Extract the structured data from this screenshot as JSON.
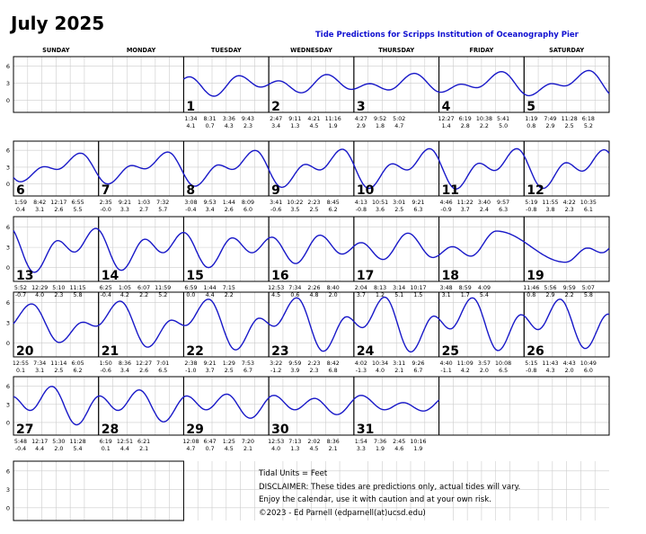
{
  "title": "July 2025",
  "subtitle": "Tide Predictions for Scripps Institution of Oceanography Pier",
  "weekdays": [
    "SUNDAY",
    "MONDAY",
    "TUESDAY",
    "WEDNESDAY",
    "THURSDAY",
    "FRIDAY",
    "SATURDAY"
  ],
  "notes": [
    "Tidal Units = Feet",
    "DISCLAIMER: These tides are predictions only, actual tides will vary.",
    "Enjoy the calendar, use it with caution and at your own risk.",
    "©2023 - Ed Parnell (edparnell(at)ucsd.edu)"
  ],
  "chart_data": {
    "type": "line",
    "y_units": "Feet",
    "y_ticks": [
      0,
      3,
      6
    ],
    "ylim": [
      -1.5,
      7
    ],
    "line_color": "#1818c8",
    "grid": true,
    "first_weekday_index": 2,
    "days": [
      {
        "day": 1,
        "tides": [
          [
            "1:34",
            "4.1"
          ],
          [
            "8:31",
            "0.7"
          ],
          [
            "3:36",
            "4.3"
          ],
          [
            "9:43",
            "2.3"
          ]
        ]
      },
      {
        "day": 2,
        "tides": [
          [
            "2:47",
            "3.4"
          ],
          [
            "9:11",
            "1.3"
          ],
          [
            "4:21",
            "4.5"
          ],
          [
            "11:16",
            "1.9"
          ]
        ]
      },
      {
        "day": 3,
        "tides": [
          [
            "4:27",
            "2.9"
          ],
          [
            "9:52",
            "1.8"
          ],
          [
            "5:02",
            "4.7"
          ]
        ]
      },
      {
        "day": 4,
        "tides": [
          [
            "12:27",
            "1.4"
          ],
          [
            "6:19",
            "2.8"
          ],
          [
            "10:38",
            "2.2"
          ],
          [
            "5:41",
            "5.0"
          ]
        ]
      },
      {
        "day": 5,
        "tides": [
          [
            "1:19",
            "0.8"
          ],
          [
            "7:49",
            "2.9"
          ],
          [
            "11:28",
            "2.5"
          ],
          [
            "6:18",
            "5.2"
          ]
        ]
      },
      {
        "day": 6,
        "tides": [
          [
            "1:59",
            "0.4"
          ],
          [
            "8:42",
            "3.1"
          ],
          [
            "12:17",
            "2.6"
          ],
          [
            "6:55",
            "5.5"
          ]
        ]
      },
      {
        "day": 7,
        "tides": [
          [
            "2:35",
            "-0.0"
          ],
          [
            "9:21",
            "3.3"
          ],
          [
            "1:03",
            "2.7"
          ],
          [
            "7:32",
            "5.7"
          ]
        ]
      },
      {
        "day": 8,
        "tides": [
          [
            "3:08",
            "-0.4"
          ],
          [
            "9:53",
            "3.4"
          ],
          [
            "1:44",
            "2.6"
          ],
          [
            "8:09",
            "6.0"
          ]
        ]
      },
      {
        "day": 9,
        "tides": [
          [
            "3:41",
            "-0.6"
          ],
          [
            "10:22",
            "3.5"
          ],
          [
            "2:23",
            "2.5"
          ],
          [
            "8:45",
            "6.2"
          ]
        ]
      },
      {
        "day": 10,
        "tides": [
          [
            "4:13",
            "-0.8"
          ],
          [
            "10:51",
            "3.6"
          ],
          [
            "3:01",
            "2.5"
          ],
          [
            "9:21",
            "6.3"
          ]
        ]
      },
      {
        "day": 11,
        "tides": [
          [
            "4:46",
            "-0.9"
          ],
          [
            "11:22",
            "3.7"
          ],
          [
            "3:40",
            "2.4"
          ],
          [
            "9:57",
            "6.3"
          ]
        ]
      },
      {
        "day": 12,
        "tides": [
          [
            "5:19",
            "-0.8"
          ],
          [
            "11:55",
            "3.8"
          ],
          [
            "4:22",
            "2.3"
          ],
          [
            "10:35",
            "6.1"
          ]
        ]
      },
      {
        "day": 13,
        "tides": [
          [
            "5:52",
            "-0.7"
          ],
          [
            "12:29",
            "4.0"
          ],
          [
            "5:10",
            "2.3"
          ],
          [
            "11:15",
            "5.8"
          ]
        ]
      },
      {
        "day": 14,
        "tides": [
          [
            "6:25",
            "-0.4"
          ],
          [
            "1:05",
            "4.2"
          ],
          [
            "6:07",
            "2.2"
          ],
          [
            "11:59",
            "5.2"
          ]
        ]
      },
      {
        "day": 15,
        "tides": [
          [
            "6:59",
            "0.0"
          ],
          [
            "1:44",
            "4.4"
          ],
          [
            "7:15",
            "2.2"
          ]
        ]
      },
      {
        "day": 16,
        "tides": [
          [
            "12:53",
            "4.5"
          ],
          [
            "7:34",
            "0.6"
          ],
          [
            "2:26",
            "4.8"
          ],
          [
            "8:40",
            "2.0"
          ]
        ]
      },
      {
        "day": 17,
        "tides": [
          [
            "2:04",
            "3.7"
          ],
          [
            "8:13",
            "1.2"
          ],
          [
            "3:14",
            "5.1"
          ],
          [
            "10:17",
            "1.5"
          ]
        ]
      },
      {
        "day": 18,
        "tides": [
          [
            "3:48",
            "3.1"
          ],
          [
            "8:59",
            "1.7"
          ],
          [
            "4:09",
            "5.4"
          ]
        ]
      },
      {
        "day": 19,
        "tides": [
          [
            "11:46",
            "0.8"
          ],
          [
            "5:56",
            "2.9"
          ],
          [
            "9:59",
            "2.2"
          ],
          [
            "5:07",
            "5.8"
          ]
        ]
      },
      {
        "day": 20,
        "tides": [
          [
            "12:55",
            "0.1"
          ],
          [
            "7:34",
            "3.1"
          ],
          [
            "11:14",
            "2.5"
          ],
          [
            "6:05",
            "6.2"
          ]
        ]
      },
      {
        "day": 21,
        "tides": [
          [
            "1:50",
            "-0.6"
          ],
          [
            "8:36",
            "3.4"
          ],
          [
            "12:27",
            "2.6"
          ],
          [
            "7:01",
            "6.5"
          ]
        ]
      },
      {
        "day": 22,
        "tides": [
          [
            "2:38",
            "-1.0"
          ],
          [
            "9:21",
            "3.7"
          ],
          [
            "1:29",
            "2.5"
          ],
          [
            "7:53",
            "6.7"
          ]
        ]
      },
      {
        "day": 23,
        "tides": [
          [
            "3:22",
            "-1.2"
          ],
          [
            "9:59",
            "3.9"
          ],
          [
            "2:23",
            "2.3"
          ],
          [
            "8:42",
            "6.8"
          ]
        ]
      },
      {
        "day": 24,
        "tides": [
          [
            "4:02",
            "-1.3"
          ],
          [
            "10:34",
            "4.0"
          ],
          [
            "3:11",
            "2.1"
          ],
          [
            "9:26",
            "6.7"
          ]
        ]
      },
      {
        "day": 25,
        "tides": [
          [
            "4:40",
            "-1.1"
          ],
          [
            "11:09",
            "4.2"
          ],
          [
            "3:57",
            "2.0"
          ],
          [
            "10:08",
            "6.5"
          ]
        ]
      },
      {
        "day": 26,
        "tides": [
          [
            "5:15",
            "-0.8"
          ],
          [
            "11:43",
            "4.3"
          ],
          [
            "4:43",
            "2.0"
          ],
          [
            "10:49",
            "6.0"
          ]
        ]
      },
      {
        "day": 27,
        "tides": [
          [
            "5:48",
            "-0.4"
          ],
          [
            "12:17",
            "4.4"
          ],
          [
            "5:30",
            "2.0"
          ],
          [
            "11:28",
            "5.4"
          ]
        ]
      },
      {
        "day": 28,
        "tides": [
          [
            "6:19",
            "0.1"
          ],
          [
            "12:51",
            "4.4"
          ],
          [
            "6:21",
            "2.1"
          ]
        ]
      },
      {
        "day": 29,
        "tides": [
          [
            "12:08",
            "4.7"
          ],
          [
            "6:47",
            "0.7"
          ],
          [
            "1:25",
            "4.5"
          ],
          [
            "7:20",
            "2.1"
          ]
        ]
      },
      {
        "day": 30,
        "tides": [
          [
            "12:53",
            "4.0"
          ],
          [
            "7:13",
            "1.3"
          ],
          [
            "2:02",
            "4.5"
          ],
          [
            "8:36",
            "2.1"
          ]
        ]
      },
      {
        "day": 31,
        "tides": [
          [
            "1:54",
            "3.3"
          ],
          [
            "7:36",
            "1.9"
          ],
          [
            "2:45",
            "4.6"
          ],
          [
            "10:16",
            "1.9"
          ]
        ]
      }
    ]
  }
}
